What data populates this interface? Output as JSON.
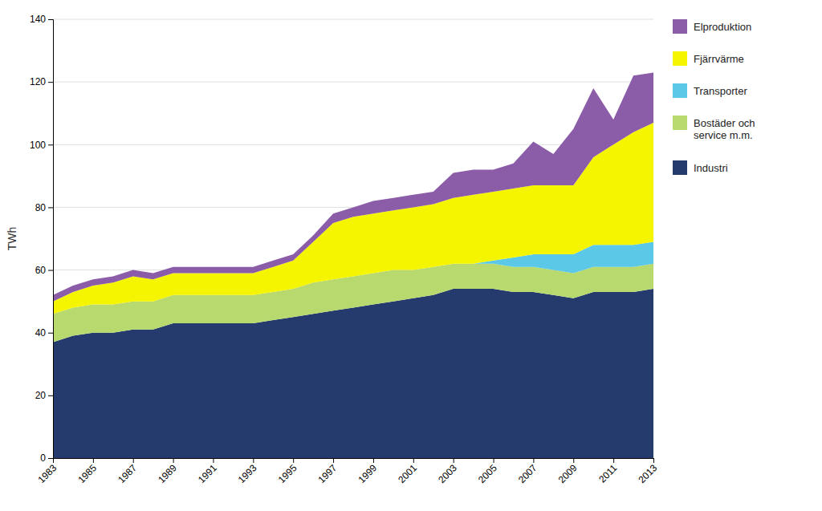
{
  "chart_data": {
    "type": "area",
    "stacked": true,
    "y_label": "TWh",
    "x": [
      1983,
      1984,
      1985,
      1986,
      1987,
      1988,
      1989,
      1990,
      1991,
      1992,
      1993,
      1994,
      1995,
      1996,
      1997,
      1998,
      1999,
      2000,
      2001,
      2002,
      2003,
      2004,
      2005,
      2006,
      2007,
      2008,
      2009,
      2010,
      2011,
      2012,
      2013
    ],
    "series": [
      {
        "name": "Industri",
        "color": "#253B6E",
        "values": [
          37,
          39,
          40,
          40,
          41,
          41,
          43,
          43,
          43,
          43,
          43,
          44,
          45,
          46,
          47,
          48,
          49,
          50,
          51,
          52,
          54,
          54,
          54,
          53,
          53,
          52,
          51,
          53,
          53,
          53,
          54
        ]
      },
      {
        "name": "Bostäder och\nservice m.m.",
        "color": "#B8D96E",
        "values": [
          9,
          9,
          9,
          9,
          9,
          9,
          9,
          9,
          9,
          9,
          9,
          9,
          9,
          10,
          10,
          10,
          10,
          10,
          9,
          9,
          8,
          8,
          8,
          8,
          8,
          8,
          8,
          8,
          8,
          8,
          8
        ]
      },
      {
        "name": "Transporter",
        "color": "#5BC8E8",
        "values": [
          0,
          0,
          0,
          0,
          0,
          0,
          0,
          0,
          0,
          0,
          0,
          0,
          0,
          0,
          0,
          0,
          0,
          0,
          0,
          0,
          0,
          0,
          1,
          3,
          4,
          5,
          6,
          7,
          7,
          7,
          7
        ]
      },
      {
        "name": "Fjärrvärme",
        "color": "#F5F500",
        "values": [
          4,
          5,
          6,
          7,
          8,
          7,
          7,
          7,
          7,
          7,
          7,
          8,
          9,
          13,
          18,
          19,
          19,
          19,
          20,
          20,
          21,
          22,
          22,
          22,
          22,
          22,
          22,
          28,
          32,
          36,
          38
        ]
      },
      {
        "name": "Elproduktion",
        "color": "#8B5CA8",
        "values": [
          2,
          2,
          2,
          2,
          2,
          2,
          2,
          2,
          2,
          2,
          2,
          2,
          2,
          2,
          3,
          3,
          4,
          4,
          4,
          4,
          8,
          8,
          7,
          8,
          14,
          10,
          18,
          22,
          8,
          18,
          16
        ]
      }
    ],
    "xlim": [
      1983,
      2013
    ],
    "xticks": [
      1983,
      1985,
      1987,
      1989,
      1991,
      1993,
      1995,
      1997,
      1999,
      2001,
      2003,
      2005,
      2007,
      2009,
      2011,
      2013
    ],
    "ylim": [
      0,
      140
    ],
    "yticks": [
      0,
      20,
      40,
      60,
      80,
      100,
      120,
      140
    ],
    "grid": true,
    "legend": "right"
  }
}
